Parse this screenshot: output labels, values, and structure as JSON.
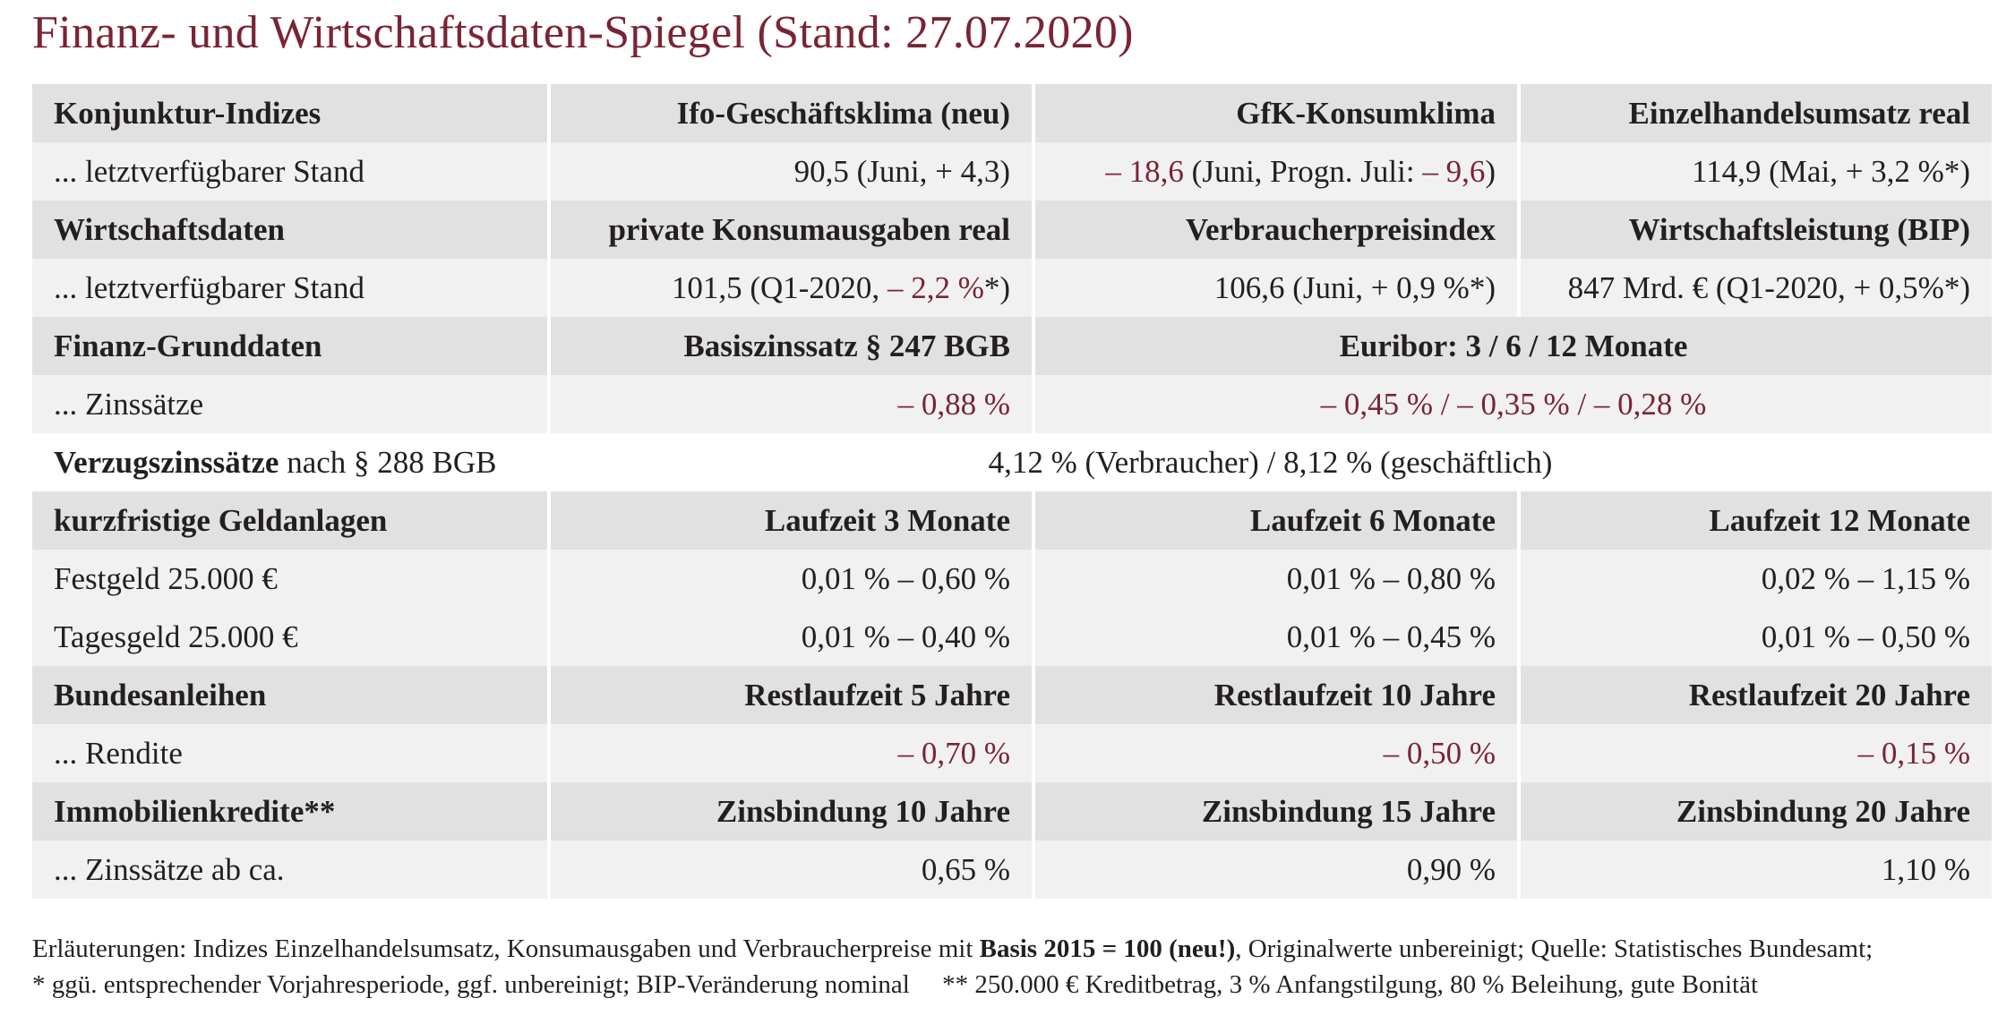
{
  "title": "Finanz- und Wirtschaftsdaten-Spiegel (Stand: 27.07.2020)",
  "colors": {
    "accent": "#7a2434",
    "header_bg": "#e1e1e1",
    "value_bg": "#f1f1f1"
  },
  "rows": [
    {
      "label": "Konjunktur-Indizes",
      "c1": "Ifo-Geschäftsklima (neu)",
      "c2": "GfK-Konsumklima",
      "c3": "Einzelhandelsumsatz real"
    },
    {
      "label": "... letztverfügbarer Stand",
      "c1": "90,5 (Juni, + 4,3)",
      "c2_neg1": "– 18,6",
      "c2_mid": " (Juni, Progn. Juli: ",
      "c2_neg2": "– 9,6",
      "c2_end": ")",
      "c3": "114,9 (Mai, + 3,2 %*)"
    },
    {
      "label": "Wirtschaftsdaten",
      "c1": "private Konsumausgaben real",
      "c2": "Verbraucherpreisindex",
      "c3": "Wirtschaftsleistung (BIP)"
    },
    {
      "label": "... letztverfügbarer Stand",
      "c1_start": "101,5 (Q1-2020, ",
      "c1_neg": "– 2,2 %",
      "c1_end": "*)",
      "c2": "106,6 (Juni, + 0,9 %*)",
      "c3": "847 Mrd. € (Q1-2020, + 0,5%*)"
    },
    {
      "label": "Finanz-Grunddaten",
      "c1": "Basiszinssatz § 247 BGB",
      "c23": "Euribor: 3 / 6 / 12 Monate"
    },
    {
      "label": "... Zinssätze",
      "c1": "– 0,88 %",
      "c23": "– 0,45 % / – 0,35 % / – 0,28 %"
    },
    {
      "label_bold": "Verzugszinssätze",
      "label_rest": " nach § 288 BGB",
      "c123": "4,12 % (Verbraucher) / 8,12 % (geschäftlich)"
    },
    {
      "label": "kurzfristige Geldanlagen",
      "c1": "Laufzeit 3 Monate",
      "c2": "Laufzeit 6 Monate",
      "c3": "Laufzeit 12 Monate"
    },
    {
      "label": "Festgeld 25.000 €",
      "c1": "0,01 % – 0,60 %",
      "c2": "0,01 % – 0,80 %",
      "c3": "0,02 % – 1,15 %"
    },
    {
      "label": "Tagesgeld 25.000 €",
      "c1": "0,01 % – 0,40 %",
      "c2": "0,01 % – 0,45 %",
      "c3": "0,01 % – 0,50 %"
    },
    {
      "label": "Bundesanleihen",
      "c1": "Restlaufzeit 5 Jahre",
      "c2": "Restlaufzeit 10 Jahre",
      "c3": "Restlaufzeit 20 Jahre"
    },
    {
      "label": "... Rendite",
      "c1": "– 0,70 %",
      "c2": "– 0,50 %",
      "c3": "– 0,15 %"
    },
    {
      "label": "Immobilienkredite**",
      "c1": "Zinsbindung 10 Jahre",
      "c2": "Zinsbindung 15 Jahre",
      "c3": "Zinsbindung 20 Jahre"
    },
    {
      "label": "... Zinssätze ab ca.",
      "c1": "0,65 %",
      "c2": "0,90 %",
      "c3": "1,10 %"
    }
  ],
  "footnotes": {
    "line1_start": "Erläuterungen: Indizes Einzelhandelsumsatz, Konsumausgaben und Verbraucherpreise mit ",
    "line1_bold": "Basis 2015 = 100 (neu!)",
    "line1_end": ", Originalwerte unbereinigt; Quelle: Statistisches Bundesamt;",
    "line2": "* ggü. entsprechender Vorjahresperiode, ggf. unbereinigt; BIP-Veränderung nominal     ** 250.000 € Kreditbetrag, 3 % Anfangstilgung, 80 % Beleihung, gute Bonität"
  }
}
